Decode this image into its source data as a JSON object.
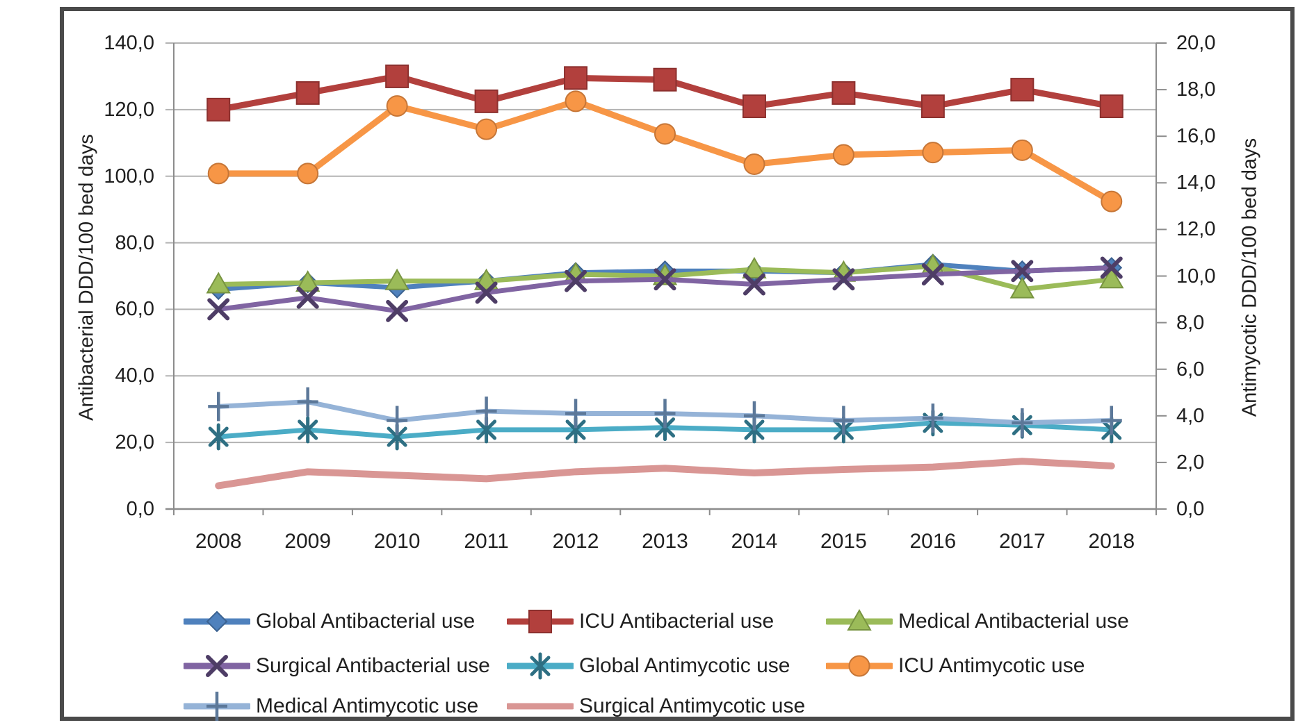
{
  "figure": {
    "background": "#ffffff",
    "frame_color": "#4a4a4a",
    "gridline_color": "#b3b3b3",
    "axis_line_color": "#8c8c8c",
    "text_color": "#1f1f1f"
  },
  "chart_data": {
    "type": "line",
    "categories": [
      "2008",
      "2009",
      "2010",
      "2011",
      "2012",
      "2013",
      "2014",
      "2015",
      "2016",
      "2017",
      "2018"
    ],
    "left_axis": {
      "title": "Antibacterial DDD/100 bed days",
      "min": 0,
      "max": 140,
      "step": 20,
      "tick_labels": [
        "0,0",
        "20,0",
        "40,0",
        "60,0",
        "80,0",
        "100,0",
        "120,0",
        "140,0"
      ]
    },
    "right_axis": {
      "title": "Antimycotic DDD/100 bed days",
      "min": 0,
      "max": 20,
      "step": 2,
      "tick_labels": [
        "0,0",
        "2,0",
        "4,0",
        "6,0",
        "8,0",
        "10,0",
        "12,0",
        "14,0",
        "16,0",
        "18,0",
        "20,0"
      ]
    },
    "grid": "horizontal",
    "legend_position": "bottom",
    "series": [
      {
        "name": "Global Antibacterial use",
        "axis": "left",
        "color": "#4f81bd",
        "edge": "#3b6291",
        "marker": "diamond",
        "values": [
          66.0,
          68.0,
          66.5,
          68.5,
          71.0,
          71.5,
          71.5,
          71.0,
          73.5,
          71.5,
          72.5
        ]
      },
      {
        "name": "ICU Antibacterial use",
        "axis": "left",
        "color": "#b2403d",
        "edge": "#8c302e",
        "marker": "square",
        "values": [
          120.0,
          125.0,
          130.0,
          122.5,
          129.5,
          129.0,
          121.0,
          125.0,
          121.0,
          126.0,
          121.0
        ]
      },
      {
        "name": "Medical Antibacterial use",
        "axis": "left",
        "color": "#9bbb59",
        "edge": "#789441",
        "marker": "triangle",
        "values": [
          67.5,
          68.0,
          68.5,
          68.5,
          70.5,
          70.0,
          72.0,
          71.0,
          73.0,
          66.0,
          69.0
        ]
      },
      {
        "name": "Surgical Antibacterial use",
        "axis": "left",
        "color": "#8064a2",
        "edge": "#4e3d66",
        "marker": "x",
        "values": [
          60.0,
          63.5,
          59.5,
          65.0,
          68.5,
          69.0,
          67.5,
          69.0,
          70.5,
          71.5,
          72.5
        ]
      },
      {
        "name": "Global Antimycotic use",
        "axis": "right",
        "color": "#4bacc6",
        "edge": "#2e6f83",
        "marker": "asterisk",
        "values": [
          3.1,
          3.4,
          3.1,
          3.4,
          3.4,
          3.5,
          3.4,
          3.4,
          3.7,
          3.6,
          3.4
        ]
      },
      {
        "name": "ICU Antimycotic use",
        "axis": "right",
        "color": "#f79646",
        "edge": "#c67637",
        "marker": "circle",
        "values": [
          14.4,
          14.4,
          17.3,
          16.3,
          17.5,
          16.1,
          14.8,
          15.2,
          15.3,
          15.4,
          13.2
        ]
      },
      {
        "name": "Medical Antimycotic use",
        "axis": "right",
        "color": "#95b3d7",
        "edge": "#5c7899",
        "marker": "plus",
        "values": [
          4.4,
          4.6,
          3.8,
          4.2,
          4.1,
          4.1,
          4.0,
          3.8,
          3.9,
          3.7,
          3.8
        ]
      },
      {
        "name": "Surgical Antimycotic use",
        "axis": "right",
        "color": "#d99694",
        "edge": "#b57a78",
        "marker": "none",
        "values": [
          1.0,
          1.6,
          1.45,
          1.3,
          1.6,
          1.75,
          1.55,
          1.7,
          1.8,
          2.05,
          1.85
        ]
      }
    ],
    "legend_rows": [
      [
        0,
        1,
        2
      ],
      [
        3,
        4,
        5
      ],
      [
        6,
        7
      ]
    ]
  }
}
